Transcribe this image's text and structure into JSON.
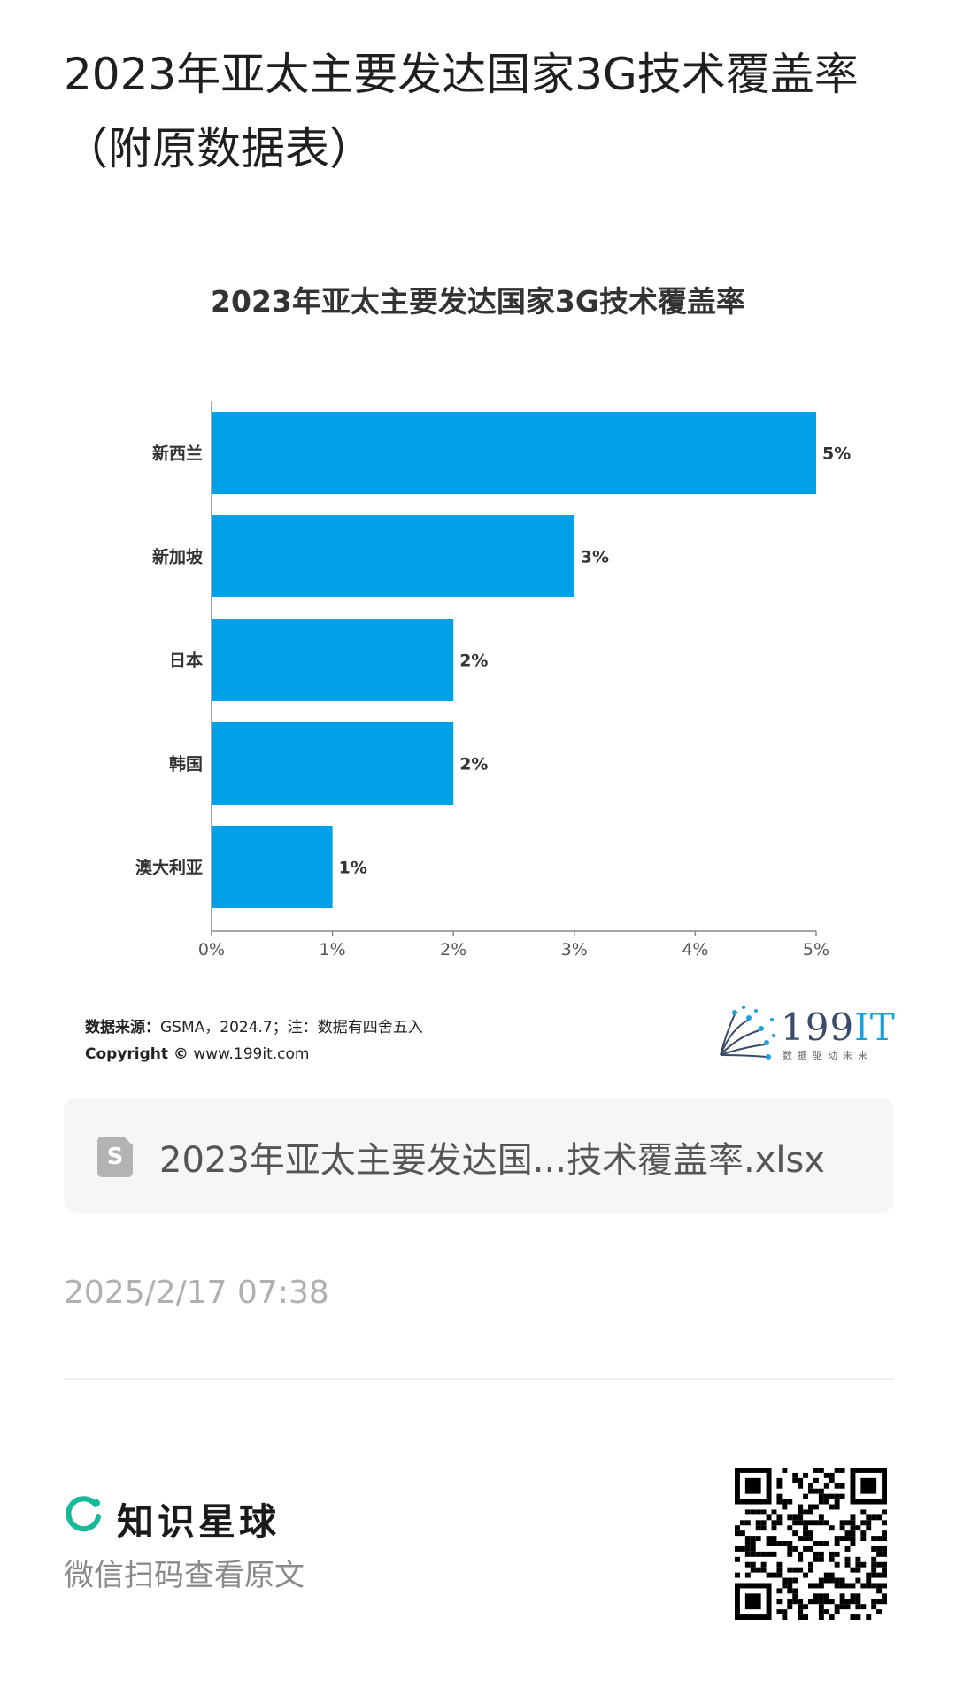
{
  "post": {
    "title": "2023年亚太主要发达国家3G技术覆盖率（附原数据表）",
    "timestamp": "2025/2/17 07:38"
  },
  "chart_data": {
    "type": "bar",
    "orientation": "horizontal",
    "title": "2023年亚太主要发达国家3G技术覆盖率",
    "xlabel": "",
    "ylabel": "",
    "categories": [
      "新西兰",
      "新加坡",
      "日本",
      "韩国",
      "澳大利亚"
    ],
    "values": [
      5,
      3,
      2,
      2,
      1
    ],
    "value_labels": [
      "5%",
      "3%",
      "2%",
      "2%",
      "1%"
    ],
    "xlim": [
      0,
      5
    ],
    "ticks": [
      "0%",
      "1%",
      "2%",
      "3%",
      "4%",
      "5%"
    ],
    "bar_color": "#00a0e9",
    "grid": false,
    "legend": "none"
  },
  "source": {
    "label": "数据来源：",
    "text": "GSMA，2024.7；注：数据有四舍五入",
    "copyright_label": "Copyright ©",
    "copyright_text": "www.199it.com"
  },
  "brand": {
    "name_num": "199",
    "name_it": "IT",
    "tagline": "数据驱动未来"
  },
  "attachment": {
    "icon": "spreadsheet-file-icon",
    "icon_letter": "S",
    "filename": "2023年亚太主要发达国...技术覆盖率.xlsx"
  },
  "footer": {
    "app_name": "知识星球",
    "hint": "微信扫码查看原文",
    "accent": "#16b998"
  }
}
